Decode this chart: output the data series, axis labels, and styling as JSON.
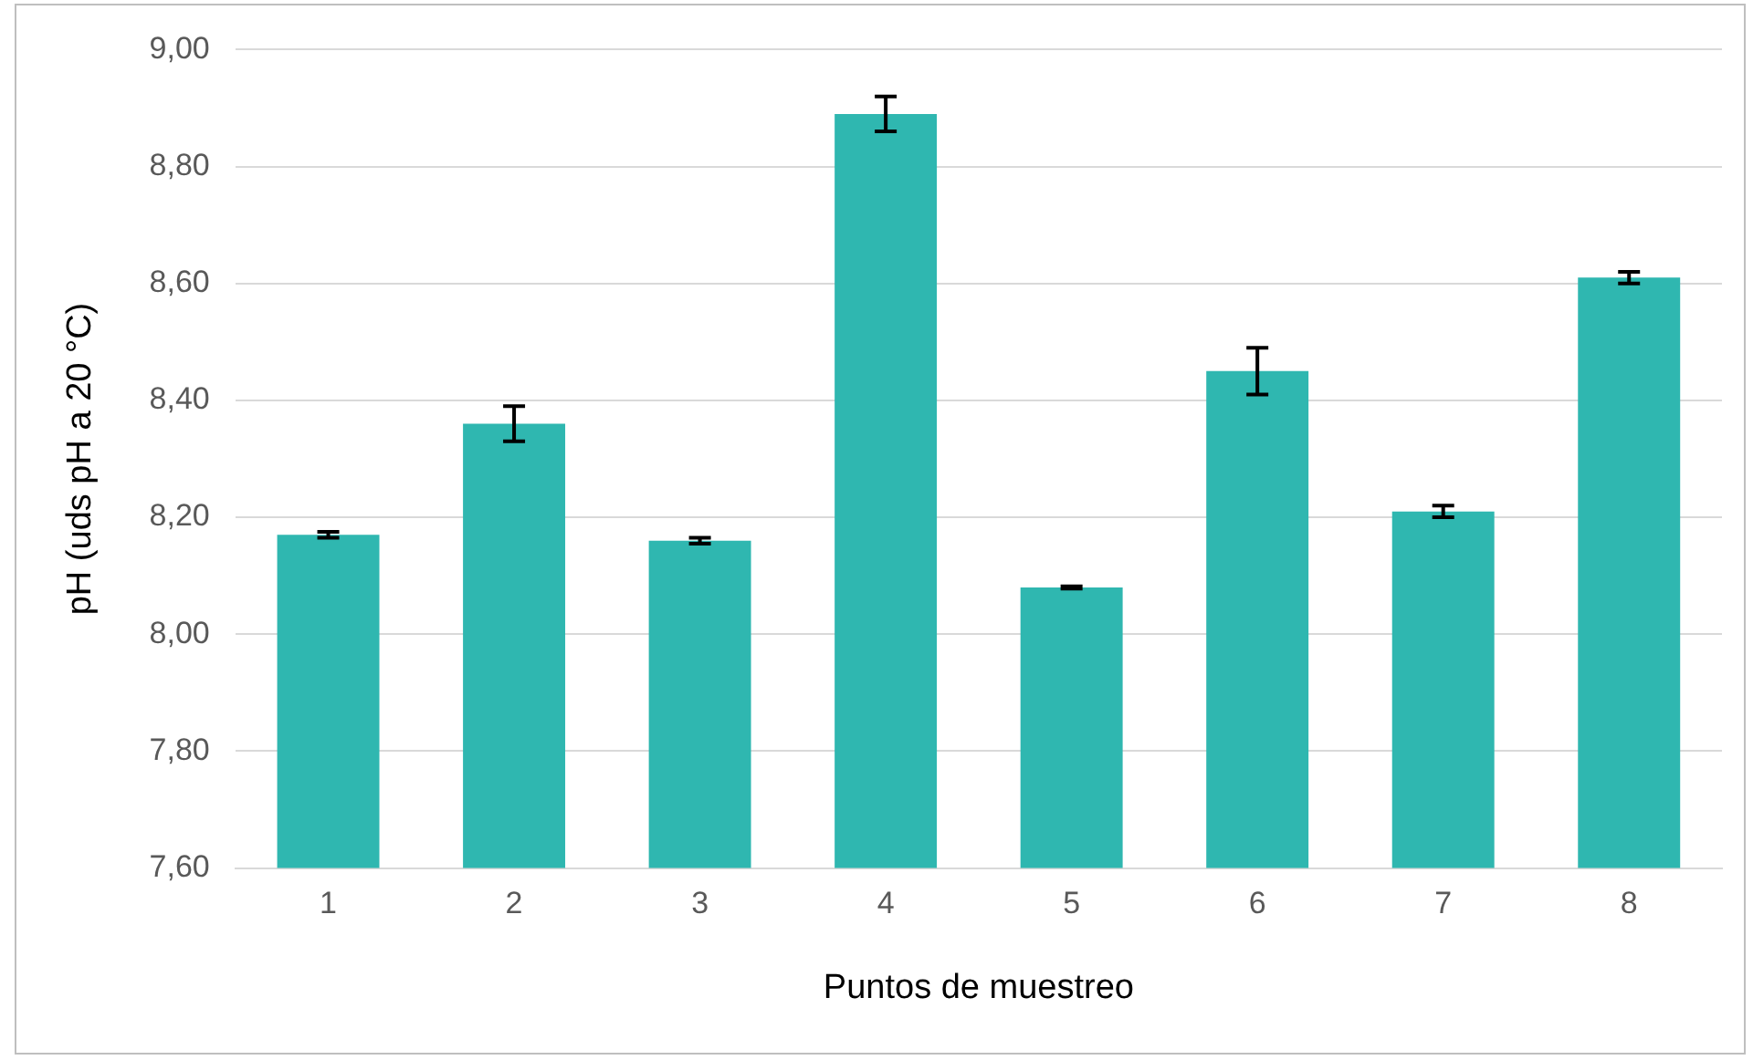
{
  "chart_data": {
    "type": "bar",
    "xlabel": "Puntos de muestreo",
    "ylabel": "pH (uds pH a 20 °C)",
    "categories": [
      "1",
      "2",
      "3",
      "4",
      "5",
      "6",
      "7",
      "8"
    ],
    "values": [
      8.17,
      8.36,
      8.16,
      8.89,
      8.08,
      8.45,
      8.21,
      8.61
    ],
    "errors": [
      0.005,
      0.03,
      0.005,
      0.03,
      0.002,
      0.04,
      0.01,
      0.01
    ],
    "color": "#2fb7b0",
    "ylim": [
      7.6,
      9.0
    ],
    "yticks": [
      {
        "value": 7.6,
        "label": "7,60"
      },
      {
        "value": 7.8,
        "label": "7,80"
      },
      {
        "value": 8.0,
        "label": "8,00"
      },
      {
        "value": 8.2,
        "label": "8,20"
      },
      {
        "value": 8.4,
        "label": "8,40"
      },
      {
        "value": 8.6,
        "label": "8,60"
      },
      {
        "value": 8.8,
        "label": "8,80"
      },
      {
        "value": 9.0,
        "label": "9,00"
      }
    ],
    "grid": "y"
  }
}
